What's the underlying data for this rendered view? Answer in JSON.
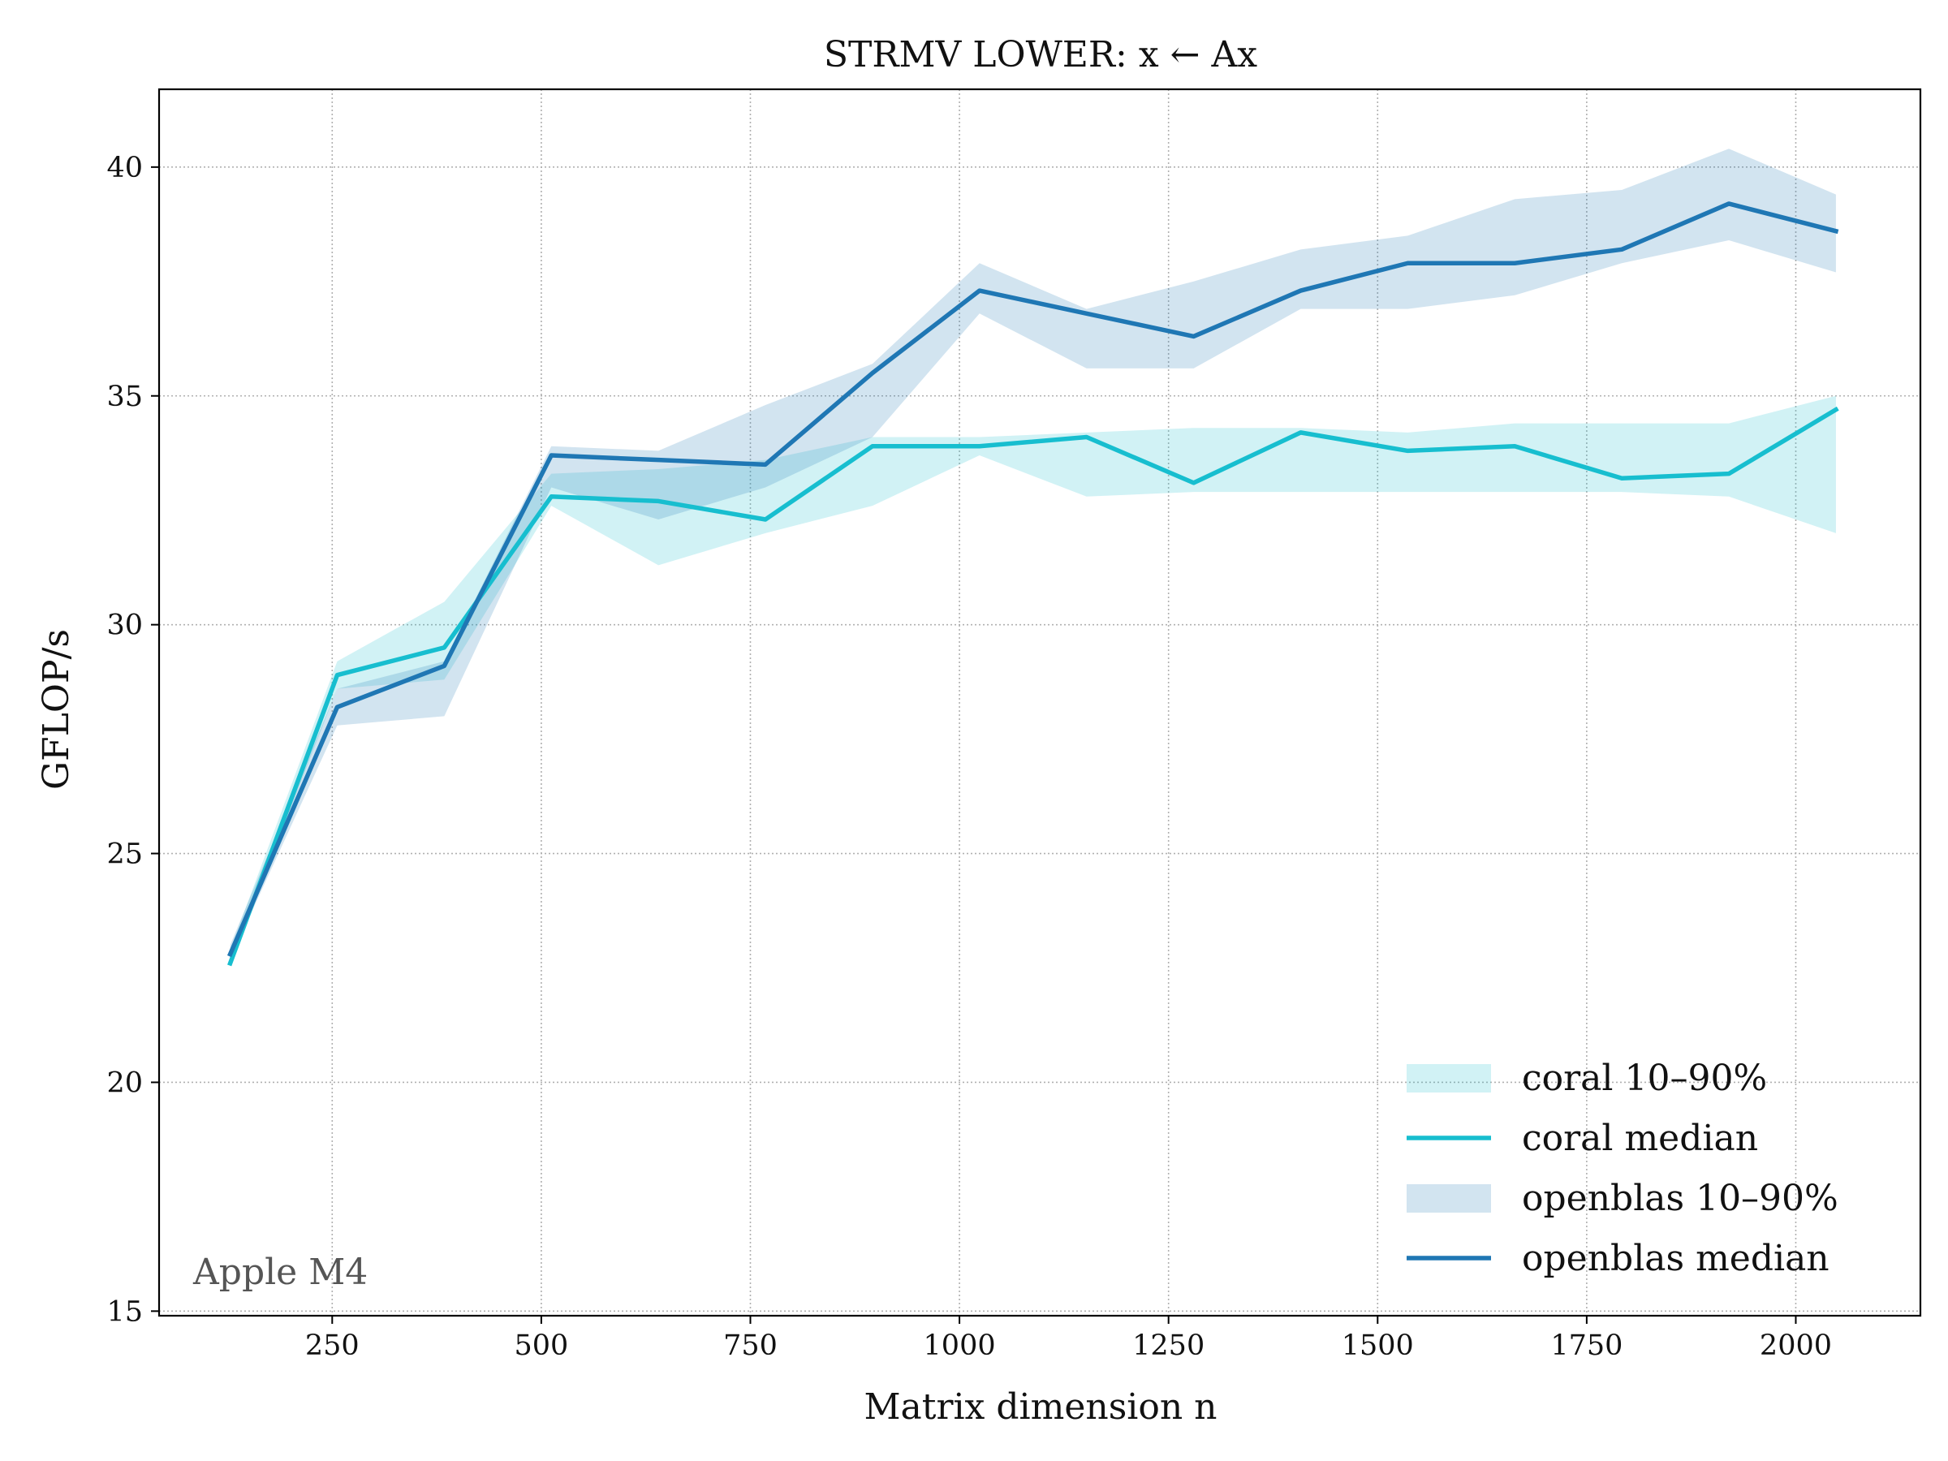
{
  "chart_data": {
    "type": "line",
    "title": "STRMV LOWER: x ← Ax",
    "xlabel": "Matrix dimension n",
    "ylabel": "GFLOP/s",
    "xlim": [
      43,
      2149
    ],
    "ylim": [
      14.9,
      41.7
    ],
    "xticks": [
      250,
      500,
      750,
      1000,
      1250,
      1500,
      1750,
      2000
    ],
    "yticks": [
      15,
      20,
      25,
      30,
      35,
      40
    ],
    "grid": true,
    "legend_position": "lower-right",
    "annotation": "Apple M4",
    "x": [
      128,
      256,
      384,
      512,
      640,
      768,
      896,
      1024,
      1152,
      1280,
      1408,
      1536,
      1664,
      1792,
      1920,
      2048
    ],
    "bands": [
      {
        "name": "coral 10–90%",
        "color": "#17becf",
        "opacity": 0.2,
        "low": [
          22.6,
          28.6,
          28.8,
          32.6,
          31.3,
          32.0,
          32.6,
          33.7,
          32.8,
          32.9,
          32.9,
          32.9,
          32.9,
          32.9,
          32.8,
          32.0
        ],
        "high": [
          22.9,
          29.2,
          30.5,
          33.3,
          33.4,
          33.6,
          34.1,
          34.1,
          34.2,
          34.3,
          34.3,
          34.2,
          34.4,
          34.4,
          34.4,
          35.0
        ]
      },
      {
        "name": "openblas 10–90%",
        "color": "#1f77b4",
        "opacity": 0.2,
        "low": [
          22.7,
          27.8,
          28.0,
          33.0,
          32.3,
          33.0,
          34.1,
          36.8,
          35.6,
          35.6,
          36.9,
          36.9,
          37.2,
          37.9,
          38.4,
          37.7
        ],
        "high": [
          23.0,
          28.6,
          29.2,
          33.9,
          33.8,
          34.8,
          35.7,
          37.9,
          36.9,
          37.5,
          38.2,
          38.5,
          39.3,
          39.5,
          40.4,
          39.4
        ]
      }
    ],
    "series": [
      {
        "name": "coral median",
        "color": "#17becf",
        "values": [
          22.6,
          28.9,
          29.5,
          32.8,
          32.7,
          32.3,
          33.9,
          33.9,
          34.1,
          33.1,
          34.2,
          33.8,
          33.9,
          33.2,
          33.3,
          34.7
        ]
      },
      {
        "name": "openblas median",
        "color": "#1f77b4",
        "values": [
          22.8,
          28.2,
          29.1,
          33.7,
          33.6,
          33.5,
          35.5,
          37.3,
          36.8,
          36.3,
          37.3,
          37.9,
          37.9,
          38.2,
          39.2,
          38.6
        ]
      }
    ],
    "legend": [
      {
        "label": "coral 10–90%",
        "kind": "band",
        "color": "#17becf"
      },
      {
        "label": "coral median",
        "kind": "line",
        "color": "#17becf"
      },
      {
        "label": "openblas 10–90%",
        "kind": "band",
        "color": "#1f77b4"
      },
      {
        "label": "openblas median",
        "kind": "line",
        "color": "#1f77b4"
      }
    ]
  }
}
